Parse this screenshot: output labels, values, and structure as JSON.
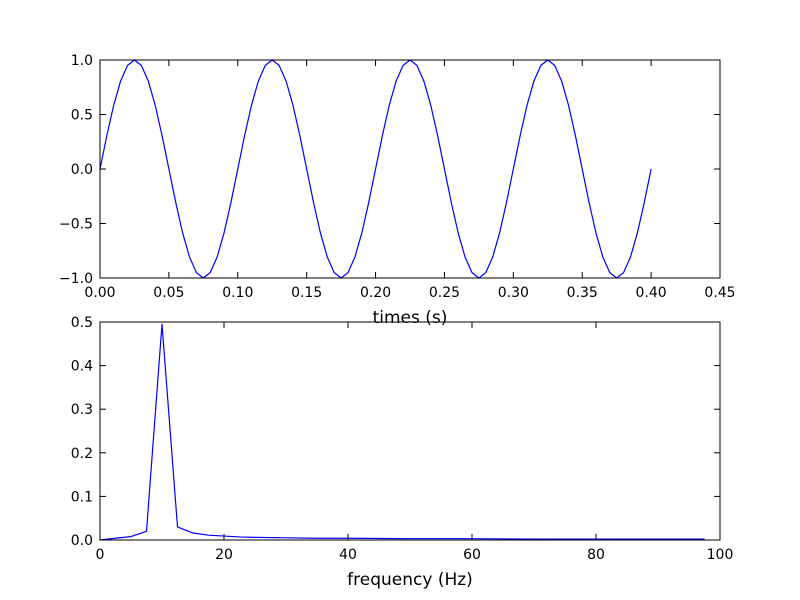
{
  "chart_data": [
    {
      "type": "line",
      "title": "",
      "xlabel": "times (s)",
      "ylabel": "",
      "xlim": [
        0.0,
        0.45
      ],
      "ylim": [
        -1.0,
        1.0
      ],
      "xticks": [
        0.0,
        0.05,
        0.1,
        0.15,
        0.2,
        0.25,
        0.3,
        0.35,
        0.4,
        0.45
      ],
      "xtick_labels": [
        "0.00",
        "0.05",
        "0.10",
        "0.15",
        "0.20",
        "0.25",
        "0.30",
        "0.35",
        "0.40",
        "0.45"
      ],
      "yticks": [
        -1.0,
        -0.5,
        0.0,
        0.5,
        1.0
      ],
      "ytick_labels": [
        "−1.0",
        "−0.5",
        "0.0",
        "0.5",
        "1.0"
      ],
      "grid": false,
      "series": [
        {
          "color": "#0000ff",
          "x": [
            0.0,
            0.005,
            0.01,
            0.015,
            0.02,
            0.025,
            0.03,
            0.035,
            0.04,
            0.045,
            0.05,
            0.055,
            0.06,
            0.065,
            0.07,
            0.075,
            0.08,
            0.085,
            0.09,
            0.095,
            0.1,
            0.105,
            0.11,
            0.115,
            0.12,
            0.125,
            0.13,
            0.135,
            0.14,
            0.145,
            0.15,
            0.155,
            0.16,
            0.165,
            0.17,
            0.175,
            0.18,
            0.185,
            0.19,
            0.195,
            0.2,
            0.205,
            0.21,
            0.215,
            0.22,
            0.225,
            0.23,
            0.235,
            0.24,
            0.245,
            0.25,
            0.255,
            0.26,
            0.265,
            0.27,
            0.275,
            0.28,
            0.285,
            0.29,
            0.295,
            0.3,
            0.305,
            0.31,
            0.315,
            0.32,
            0.325,
            0.33,
            0.335,
            0.34,
            0.345,
            0.35,
            0.355,
            0.36,
            0.365,
            0.37,
            0.375,
            0.38,
            0.385,
            0.39,
            0.395,
            0.4
          ],
          "y": [
            0.0,
            0.309,
            0.588,
            0.809,
            0.951,
            1.0,
            0.951,
            0.809,
            0.588,
            0.309,
            0.0,
            -0.309,
            -0.588,
            -0.809,
            -0.951,
            -1.0,
            -0.951,
            -0.809,
            -0.588,
            -0.309,
            0.0,
            0.309,
            0.588,
            0.809,
            0.951,
            1.0,
            0.951,
            0.809,
            0.588,
            0.309,
            0.0,
            -0.309,
            -0.588,
            -0.809,
            -0.951,
            -1.0,
            -0.951,
            -0.809,
            -0.588,
            -0.309,
            0.0,
            0.309,
            0.588,
            0.809,
            0.951,
            1.0,
            0.951,
            0.809,
            0.588,
            0.309,
            0.0,
            -0.309,
            -0.588,
            -0.809,
            -0.951,
            -1.0,
            -0.951,
            -0.809,
            -0.588,
            -0.309,
            0.0,
            0.309,
            0.588,
            0.809,
            0.951,
            1.0,
            0.951,
            0.809,
            0.588,
            0.309,
            0.0,
            -0.309,
            -0.588,
            -0.809,
            -0.951,
            -1.0,
            -0.951,
            -0.809,
            -0.588,
            -0.309,
            0.0
          ]
        }
      ]
    },
    {
      "type": "line",
      "title": "",
      "xlabel": "frequency (Hz)",
      "ylabel": "",
      "xlim": [
        0,
        100
      ],
      "ylim": [
        0.0,
        0.5
      ],
      "xticks": [
        0,
        20,
        40,
        60,
        80,
        100
      ],
      "xtick_labels": [
        "0",
        "20",
        "40",
        "60",
        "80",
        "100"
      ],
      "yticks": [
        0.0,
        0.1,
        0.2,
        0.3,
        0.4,
        0.5
      ],
      "ytick_labels": [
        "0.0",
        "0.1",
        "0.2",
        "0.3",
        "0.4",
        "0.5"
      ],
      "grid": false,
      "series": [
        {
          "color": "#0000ff",
          "x": [
            0,
            2.5,
            5,
            7.5,
            10,
            12.5,
            15,
            17.5,
            20,
            22.5,
            25,
            30,
            35,
            40,
            50,
            60,
            70,
            80,
            90,
            97.5
          ],
          "y": [
            0.0,
            0.004,
            0.008,
            0.02,
            0.495,
            0.03,
            0.016,
            0.011,
            0.009,
            0.007,
            0.006,
            0.005,
            0.004,
            0.004,
            0.003,
            0.003,
            0.002,
            0.002,
            0.002,
            0.002
          ]
        }
      ]
    }
  ]
}
